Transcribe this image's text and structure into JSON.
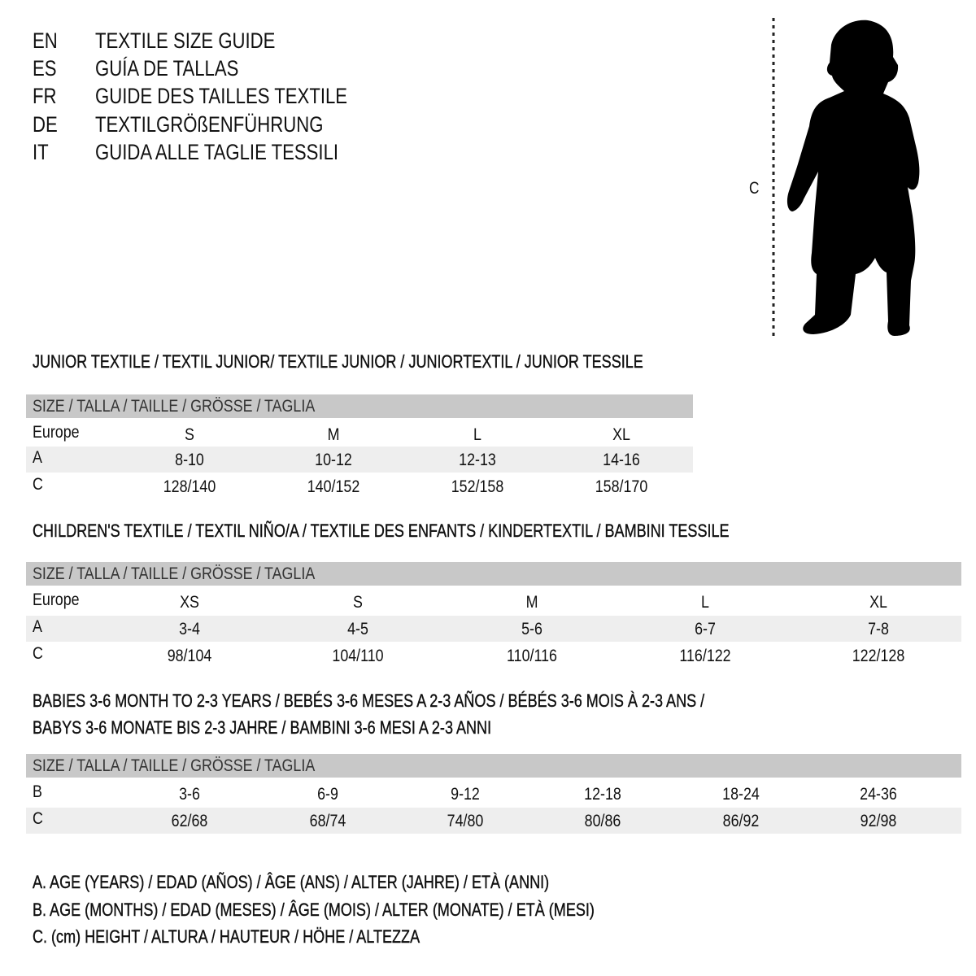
{
  "titles": [
    {
      "code": "EN",
      "text": "TEXTILE SIZE GUIDE"
    },
    {
      "code": "ES",
      "text": "GUÍA DE TALLAS"
    },
    {
      "code": "FR",
      "text": "GUIDE DES TAILLES TEXTILE"
    },
    {
      "code": "DE",
      "text": "TEXTILGRÖßENFÜHRUNG"
    },
    {
      "code": "IT",
      "text": "GUIDA ALLE TAGLIE TESSILI"
    }
  ],
  "figure": {
    "measure_label": "C",
    "icon": "child-silhouette"
  },
  "size_header": "SIZE / TALLA / TAILLE / GRÖSSE / TAGLIA",
  "colors": {
    "header_bar": "#c8c8c8",
    "shaded_row": "#eeeeee"
  },
  "tables": [
    {
      "heading": [
        "JUNIOR TEXTILE / TEXTIL JUNIOR/ TEXTILE JUNIOR / JUNIORTEXTIL / JUNIOR TESSILE"
      ],
      "rows": [
        {
          "label": "Europe",
          "values": [
            "S",
            "M",
            "L",
            "XL"
          ]
        },
        {
          "label": "A",
          "values": [
            "8-10",
            "10-12",
            "12-13",
            "14-16"
          ]
        },
        {
          "label": "C",
          "values": [
            "128/140",
            "140/152",
            "152/158",
            "158/170"
          ]
        }
      ]
    },
    {
      "heading": [
        "CHILDREN'S TEXTILE / TEXTIL NIÑO/A / TEXTILE DES ENFANTS / KINDERTEXTIL / BAMBINI TESSILE"
      ],
      "rows": [
        {
          "label": "Europe",
          "values": [
            "XS",
            "S",
            "M",
            "L",
            "XL"
          ]
        },
        {
          "label": "A",
          "values": [
            "3-4",
            "4-5",
            "5-6",
            "6-7",
            "7-8"
          ]
        },
        {
          "label": "C",
          "values": [
            "98/104",
            "104/110",
            "110/116",
            "116/122",
            "122/128"
          ]
        }
      ]
    },
    {
      "heading": [
        "BABIES 3-6 MONTH TO 2-3 YEARS / BEBÉS 3-6 MESES A 2-3 AÑOS / BÉBÉS 3-6 MOIS À 2-3 ANS /",
        "BABYS 3-6 MONATE BIS 2-3 JAHRE / BAMBINI 3-6 MESI A 2-3 ANNI"
      ],
      "rows": [
        {
          "label": "B",
          "values": [
            "3-6",
            "6-9",
            "9-12",
            "12-18",
            "18-24",
            "24-36"
          ]
        },
        {
          "label": "C",
          "values": [
            "62/68",
            "68/74",
            "74/80",
            "80/86",
            "86/92",
            "92/98"
          ]
        }
      ]
    }
  ],
  "legend": [
    "A. AGE (YEARS) / EDAD (AÑOS) / ÂGE (ANS) / ALTER (JAHRE) / ETÀ (ANNI)",
    "B. AGE (MONTHS) / EDAD (MESES) / ÂGE (MOIS) / ALTER (MONATE) / ETÀ (MESI)",
    "C. (cm) HEIGHT / ALTURA / HAUTEUR / HÖHE / ALTEZZA"
  ]
}
